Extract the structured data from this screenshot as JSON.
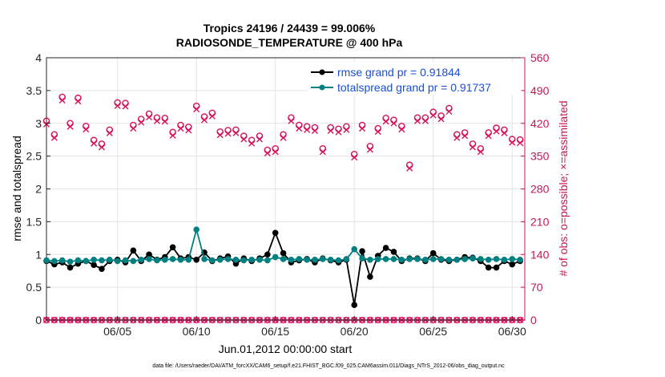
{
  "chart_data": {
    "type": "line",
    "title_line1": "Tropics 24196 / 24439 = 99.006%",
    "title_line2": "RADIOSONDE_TEMPERATURE @ 400 hPa",
    "xlabel": "Jun.01,2012 00:00:00 start",
    "ylabel_left": "rmse and totalspread",
    "ylabel_right": "# of obs: o=possible; ×=assimilated",
    "footer": "data file: /Users/raeder/DAI/ATM_forcXX/CAM6_setup/f.e21.FHIST_BGC.f09_025.CAM6assim.011/Diags_NTrS_2012-06/obs_diag_output.nc",
    "xlim": [
      0.5,
      30.8
    ],
    "ylim_left": [
      0,
      4
    ],
    "ylim_right": [
      0,
      560
    ],
    "x_ticks": [
      {
        "value": 5,
        "label": "06/05"
      },
      {
        "value": 10,
        "label": "06/10"
      },
      {
        "value": 15,
        "label": "06/15"
      },
      {
        "value": 20,
        "label": "06/20"
      },
      {
        "value": 25,
        "label": "06/25"
      },
      {
        "value": 30,
        "label": "06/30"
      }
    ],
    "y_ticks_left": [
      "0",
      "0.5",
      "1",
      "1.5",
      "2",
      "2.5",
      "3",
      "3.5",
      "4"
    ],
    "y_ticks_right": [
      "0",
      "70",
      "140",
      "210",
      "280",
      "350",
      "420",
      "490",
      "560"
    ],
    "colors": {
      "rmse": "#000000",
      "spread": "#008080",
      "obs": "#d6105a",
      "right_axis": "#c8145a",
      "legend_text": "#1a4fd6"
    },
    "legend": [
      "rmse grand pr = 0.91844",
      "totalspread grand pr = 0.91737"
    ],
    "x": [
      0.5,
      1,
      1.5,
      2,
      2.5,
      3,
      3.5,
      4,
      4.5,
      5,
      5.5,
      6,
      6.5,
      7,
      7.5,
      8,
      8.5,
      9,
      9.5,
      10,
      10.5,
      11,
      11.5,
      12,
      12.5,
      13,
      13.5,
      14,
      14.5,
      15,
      15.5,
      16,
      16.5,
      17,
      17.5,
      18,
      18.5,
      19,
      19.5,
      20,
      20.5,
      21,
      21.5,
      22,
      22.5,
      23,
      23.5,
      24,
      24.5,
      25,
      25.5,
      26,
      26.5,
      27,
      27.5,
      28,
      28.5,
      29,
      29.5,
      30,
      30.5
    ],
    "series": [
      {
        "name": "rmse",
        "values": [
          0.9,
          0.85,
          0.88,
          0.8,
          0.86,
          0.9,
          0.84,
          0.78,
          0.9,
          0.92,
          0.88,
          1.06,
          0.9,
          1.0,
          0.92,
          0.96,
          1.11,
          0.94,
          0.96,
          0.92,
          1.03,
          0.9,
          0.94,
          0.97,
          0.86,
          0.94,
          0.9,
          0.94,
          1.0,
          1.33,
          1.02,
          0.88,
          0.91,
          0.93,
          0.88,
          0.94,
          0.91,
          0.88,
          0.92,
          0.23,
          1.05,
          0.66,
          0.98,
          1.1,
          1.04,
          0.9,
          0.94,
          0.94,
          0.9,
          1.02,
          0.92,
          0.9,
          0.92,
          0.96,
          0.95,
          0.9,
          0.8,
          0.8,
          0.9,
          0.85,
          0.9
        ]
      },
      {
        "name": "totalspread",
        "values": [
          0.91,
          0.9,
          0.91,
          0.89,
          0.91,
          0.9,
          0.92,
          0.91,
          0.92,
          0.9,
          0.91,
          0.9,
          0.92,
          0.93,
          0.91,
          0.92,
          0.93,
          0.92,
          0.92,
          1.38,
          0.93,
          0.91,
          0.92,
          0.93,
          0.92,
          0.91,
          0.92,
          0.92,
          0.91,
          0.96,
          0.93,
          0.92,
          0.93,
          0.92,
          0.92,
          0.93,
          0.92,
          0.91,
          0.93,
          1.08,
          0.94,
          0.92,
          0.93,
          0.93,
          0.93,
          0.92,
          0.93,
          0.93,
          0.92,
          0.93,
          0.93,
          0.92,
          0.92,
          0.93,
          0.94,
          0.93,
          0.92,
          0.93,
          0.92,
          0.93,
          0.92
        ]
      }
    ],
    "obs_possible": [
      425,
      396,
      476,
      420,
      474,
      414,
      384,
      376,
      406,
      464,
      463,
      416,
      429,
      440,
      432,
      431,
      401,
      416,
      412,
      457,
      434,
      442,
      402,
      405,
      406,
      393,
      384,
      393,
      363,
      366,
      396,
      432,
      416,
      413,
      411,
      366,
      411,
      408,
      413,
      354,
      416,
      371,
      409,
      431,
      427,
      414,
      331,
      432,
      432,
      444,
      436,
      452,
      396,
      400,
      376,
      366,
      400,
      410,
      406,
      386,
      385
    ]
  }
}
